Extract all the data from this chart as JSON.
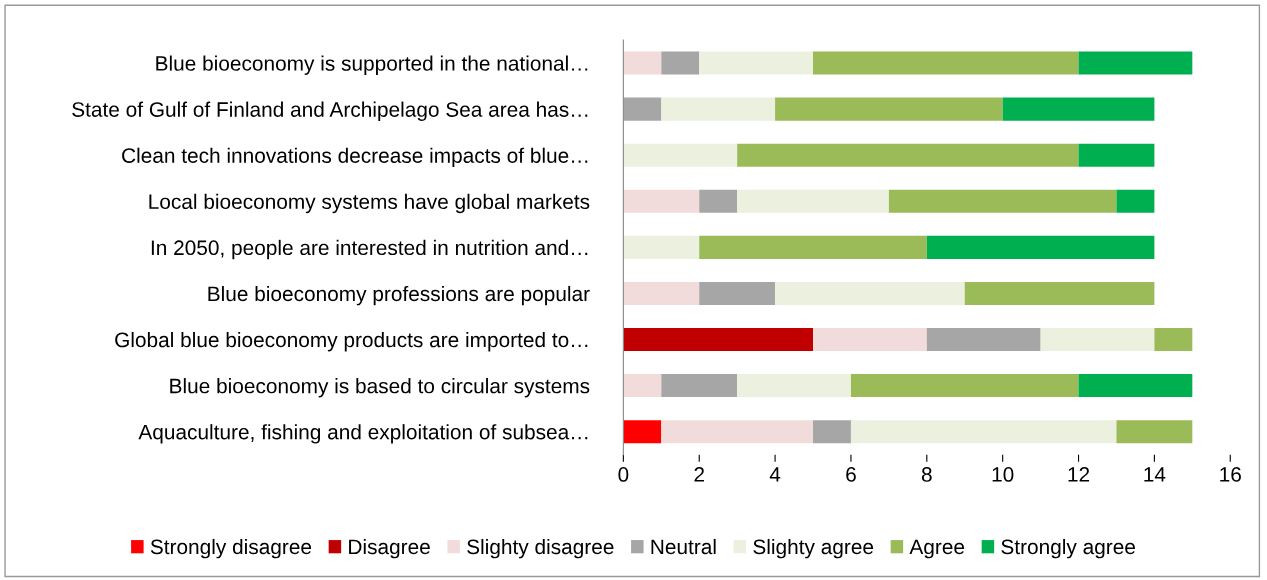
{
  "chart_data": {
    "type": "bar",
    "orientation": "horizontal",
    "stacked": true,
    "categories": [
      "Blue bioeconomy is supported in the national…",
      "State of Gulf of Finland and Archipelago Sea area has…",
      "Clean tech innovations decrease impacts of blue…",
      "Local bioeconomy systems have global markets",
      "In 2050, people are interested in nutrition and…",
      "Blue bioeconomy professions are popular",
      "Global blue bioeconomy products are imported to…",
      "Blue bioeconomy is based to circular systems",
      "Aquaculture, fishing and exploitation of subsea…"
    ],
    "series": [
      {
        "name": "Strongly disagree",
        "color": "#ff0000",
        "values": [
          0,
          0,
          0,
          0,
          0,
          0,
          0,
          0,
          1
        ]
      },
      {
        "name": "Disagree",
        "color": "#c00000",
        "values": [
          0,
          0,
          0,
          0,
          0,
          0,
          5,
          0,
          0
        ]
      },
      {
        "name": "Slighty disagree",
        "color": "#f2dcdb",
        "values": [
          1,
          0,
          0,
          2,
          0,
          2,
          3,
          1,
          4
        ]
      },
      {
        "name": "Neutral",
        "color": "#a6a6a6",
        "values": [
          1,
          1,
          0,
          1,
          0,
          2,
          3,
          2,
          1
        ]
      },
      {
        "name": "Slighty agree",
        "color": "#ebf1de",
        "values": [
          3,
          3,
          3,
          4,
          2,
          5,
          3,
          3,
          7
        ]
      },
      {
        "name": "Agree",
        "color": "#9bbb59",
        "values": [
          7,
          6,
          9,
          6,
          6,
          5,
          1,
          6,
          2
        ]
      },
      {
        "name": "Strongly agree",
        "color": "#00b050",
        "values": [
          3,
          4,
          2,
          1,
          6,
          0,
          0,
          3,
          0
        ]
      }
    ],
    "xlim": [
      0,
      16
    ],
    "xticks": [
      0,
      2,
      4,
      6,
      8,
      10,
      12,
      14,
      16
    ],
    "grid": false,
    "legend": "bottom"
  }
}
